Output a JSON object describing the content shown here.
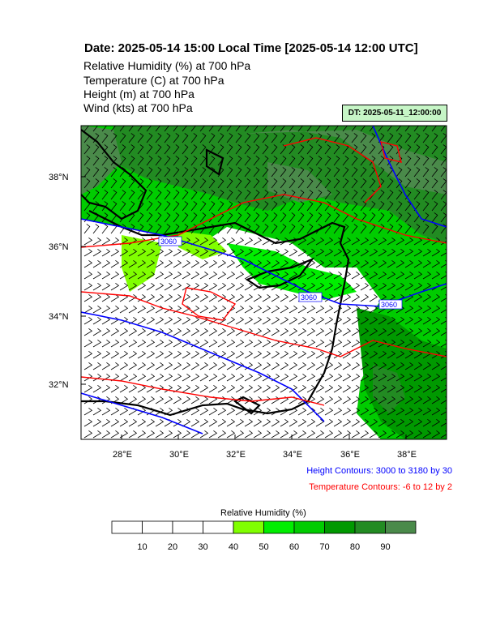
{
  "header": {
    "title": "Date: 2025-05-14  15:00 Local Time [2025-05-14  12:00 UTC]",
    "line1": "Relative Humidity   (%)     at   700 hPa",
    "line2": "Temperature   (C)     at   700 hPa",
    "line3": "Height   (m)     at   700 hPa",
    "line4": "Wind   (kts)     at   700 hPa",
    "dt": "DT: 2025-05-11_12:00:00"
  },
  "map": {
    "lat_labels": [
      "38°N",
      "36°N",
      "34°N",
      "32°N"
    ],
    "lon_labels": [
      "28°E",
      "30°E",
      "32°E",
      "34°E",
      "36°E",
      "38°E"
    ],
    "height_labels": [
      "3060",
      "3060",
      "3060"
    ],
    "colors": {
      "height": "#0000ff",
      "temperature": "#ff0000",
      "coast": "#000000"
    }
  },
  "legend": {
    "height_contours": "Height Contours: 3000 to 3180 by 30",
    "temperature_contours": "Temperature Contours: -6 to 12 by 2"
  },
  "colorbar": {
    "title": "Relative Humidity  (%)",
    "ticks": [
      "10",
      "20",
      "30",
      "40",
      "50",
      "60",
      "70",
      "80",
      "90"
    ],
    "colors": [
      "#ffffff",
      "#ffffff",
      "#ffffff",
      "#ffffff",
      "#80ff00",
      "#00ee00",
      "#00cc00",
      "#009900",
      "#228b22",
      "#4a8a4a"
    ]
  }
}
